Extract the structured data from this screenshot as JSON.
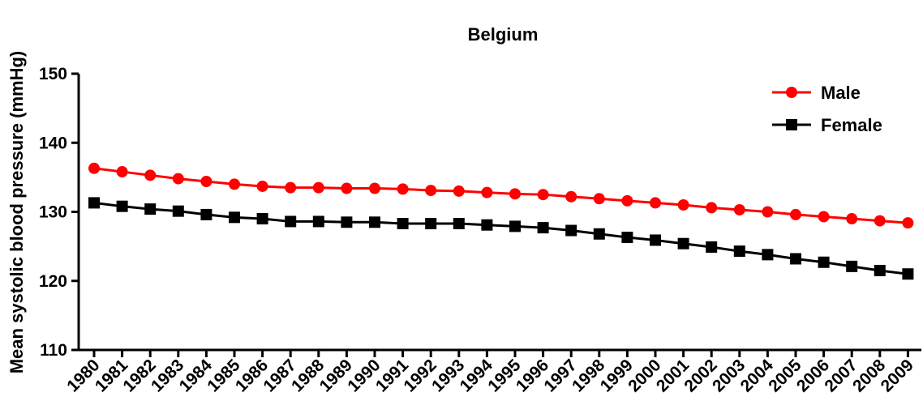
{
  "chart_data": {
    "type": "line",
    "title": "Belgium",
    "xlabel": "",
    "ylabel": "Mean systolic blood pressure (mmHg)",
    "ylim": [
      110,
      150
    ],
    "yticks": [
      "110",
      "120",
      "130",
      "140",
      "150"
    ],
    "xticks": [
      "1980",
      "1981",
      "1982",
      "1983",
      "1984",
      "1985",
      "1986",
      "1987",
      "1988",
      "1989",
      "1990",
      "1991",
      "1992",
      "1993",
      "1994",
      "1995",
      "1996",
      "1997",
      "1998",
      "1999",
      "2000",
      "2001",
      "2002",
      "2003",
      "2004",
      "2005",
      "2006",
      "2007",
      "2008",
      "2009"
    ],
    "x": [
      1980,
      1981,
      1982,
      1983,
      1984,
      1985,
      1986,
      1987,
      1988,
      1989,
      1990,
      1991,
      1992,
      1993,
      1994,
      1995,
      1996,
      1997,
      1998,
      1999,
      2000,
      2001,
      2002,
      2003,
      2004,
      2005,
      2006,
      2007,
      2008,
      2009
    ],
    "legend_position": "top-right",
    "grid": false,
    "series": [
      {
        "name": "Male",
        "color": "#ff0000",
        "marker": "circle",
        "values": [
          136.3,
          135.8,
          135.3,
          134.8,
          134.4,
          134.0,
          133.7,
          133.5,
          133.5,
          133.4,
          133.4,
          133.3,
          133.1,
          133.0,
          132.8,
          132.6,
          132.5,
          132.2,
          131.9,
          131.6,
          131.3,
          131.0,
          130.6,
          130.3,
          130.0,
          129.6,
          129.3,
          129.0,
          128.7,
          128.4
        ]
      },
      {
        "name": "Female",
        "color": "#000000",
        "marker": "square",
        "values": [
          131.3,
          130.8,
          130.4,
          130.1,
          129.6,
          129.2,
          129.0,
          128.6,
          128.6,
          128.5,
          128.5,
          128.3,
          128.3,
          128.3,
          128.1,
          127.9,
          127.7,
          127.3,
          126.8,
          126.3,
          125.9,
          125.4,
          124.9,
          124.3,
          123.8,
          123.2,
          122.7,
          122.1,
          121.5,
          121.0
        ]
      }
    ]
  }
}
